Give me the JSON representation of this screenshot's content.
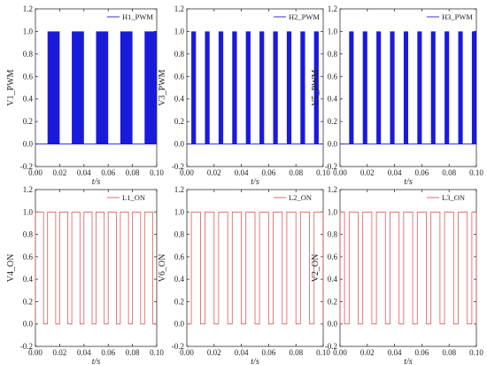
{
  "chart_data": [
    {
      "type": "line",
      "series": [
        {
          "name": "H1_PWM",
          "kind": "pwm"
        }
      ],
      "xlabel": "t/s",
      "ylabel": "V1_PWM",
      "xlim": [
        0,
        0.1
      ],
      "ylim": [
        -0.2,
        1.2
      ],
      "xticks": [
        "0.00",
        "0.02",
        "0.04",
        "0.06",
        "0.08",
        "0.10"
      ],
      "yticks": [
        "-0.2",
        "0.0",
        "0.2",
        "0.4",
        "0.6",
        "0.8",
        "1.0",
        "1.2"
      ],
      "legend_position": "top-right",
      "color": "#1a1adb",
      "pulse_periods": [
        [
          0.01,
          0.02
        ],
        [
          0.03,
          0.04
        ],
        [
          0.05,
          0.06
        ],
        [
          0.07,
          0.08
        ],
        [
          0.09,
          0.1
        ]
      ],
      "pulse_high": 1.0,
      "pulse_low": 0.0
    },
    {
      "type": "line",
      "series": [
        {
          "name": "H2_PWM",
          "kind": "pwm"
        }
      ],
      "xlabel": "t/s",
      "ylabel": "V3_PWM",
      "xlim": [
        0,
        0.1
      ],
      "ylim": [
        -0.2,
        1.2
      ],
      "xticks": [
        "0.00",
        "0.02",
        "0.04",
        "0.06",
        "0.08",
        "0.10"
      ],
      "yticks": [
        "-0.2",
        "0.0",
        "0.2",
        "0.4",
        "0.6",
        "0.8",
        "1.0",
        "1.2"
      ],
      "legend_position": "top-right",
      "color": "#1a1adb",
      "pulse_periods": [
        [
          0.0033,
          0.0067
        ],
        [
          0.0133,
          0.0167
        ],
        [
          0.0233,
          0.0267
        ],
        [
          0.0333,
          0.0367
        ],
        [
          0.0433,
          0.0467
        ],
        [
          0.0533,
          0.0567
        ],
        [
          0.0633,
          0.0667
        ],
        [
          0.0733,
          0.0767
        ],
        [
          0.0833,
          0.0867
        ],
        [
          0.0933,
          0.0967
        ]
      ],
      "pulse_high": 1.0,
      "pulse_low": 0.0
    },
    {
      "type": "line",
      "series": [
        {
          "name": "H3_PWM",
          "kind": "pwm"
        }
      ],
      "xlabel": "t/s",
      "ylabel": "V5_PWM",
      "xlim": [
        0,
        0.1
      ],
      "ylim": [
        -0.2,
        1.2
      ],
      "xticks": [
        "0.00",
        "0.02",
        "0.04",
        "0.06",
        "0.08",
        "0.10"
      ],
      "yticks": [
        "-0.2",
        "0.0",
        "0.2",
        "0.4",
        "0.6",
        "0.8",
        "1.0",
        "1.2"
      ],
      "legend_position": "top-right",
      "color": "#1a1adb",
      "pulse_periods": [
        [
          0.0067,
          0.01
        ],
        [
          0.0167,
          0.02
        ],
        [
          0.0267,
          0.03
        ],
        [
          0.0367,
          0.04
        ],
        [
          0.0467,
          0.05
        ],
        [
          0.0567,
          0.06
        ],
        [
          0.0667,
          0.07
        ],
        [
          0.0767,
          0.08
        ],
        [
          0.0867,
          0.09
        ],
        [
          0.0967,
          0.1
        ]
      ],
      "pulse_high": 1.0,
      "pulse_low": 0.0
    },
    {
      "type": "line",
      "series": [
        {
          "name": "L1_ON",
          "kind": "square"
        }
      ],
      "xlabel": "t/s",
      "ylabel": "V4_ON",
      "xlim": [
        0,
        0.1
      ],
      "ylim": [
        -0.2,
        1.2
      ],
      "xticks": [
        "0.00",
        "0.02",
        "0.04",
        "0.06",
        "0.08",
        "0.10"
      ],
      "yticks": [
        "-0.2",
        "0.0",
        "0.2",
        "0.4",
        "0.6",
        "0.8",
        "1.0",
        "1.2"
      ],
      "legend_position": "top-right",
      "color": "#e05a5a",
      "high_intervals": [
        [
          0.0,
          0.0067
        ],
        [
          0.01,
          0.0167
        ],
        [
          0.02,
          0.0267
        ],
        [
          0.03,
          0.0367
        ],
        [
          0.04,
          0.0467
        ],
        [
          0.05,
          0.0567
        ],
        [
          0.06,
          0.0667
        ],
        [
          0.07,
          0.0767
        ],
        [
          0.08,
          0.0867
        ],
        [
          0.09,
          0.0967
        ]
      ],
      "pulse_high": 1.0,
      "pulse_low": 0.0
    },
    {
      "type": "line",
      "series": [
        {
          "name": "L2_ON",
          "kind": "square"
        }
      ],
      "xlabel": "t/s",
      "ylabel": "V6_ON",
      "xlim": [
        0,
        0.1
      ],
      "ylim": [
        -0.2,
        1.2
      ],
      "xticks": [
        "0.00",
        "0.02",
        "0.04",
        "0.06",
        "0.08",
        "0.10"
      ],
      "yticks": [
        "-0.2",
        "0.0",
        "0.2",
        "0.4",
        "0.6",
        "0.8",
        "1.0",
        "1.2"
      ],
      "legend_position": "top-right",
      "color": "#e05a5a",
      "high_intervals": [
        [
          0.0033,
          0.01
        ],
        [
          0.0133,
          0.02
        ],
        [
          0.0233,
          0.03
        ],
        [
          0.0333,
          0.04
        ],
        [
          0.0433,
          0.05
        ],
        [
          0.0533,
          0.06
        ],
        [
          0.0633,
          0.07
        ],
        [
          0.0733,
          0.08
        ],
        [
          0.0833,
          0.09
        ],
        [
          0.0933,
          0.1
        ]
      ],
      "pulse_high": 1.0,
      "pulse_low": 0.0
    },
    {
      "type": "line",
      "series": [
        {
          "name": "L3_ON",
          "kind": "square"
        }
      ],
      "xlabel": "t/s",
      "ylabel": "V2_ON",
      "xlim": [
        0,
        0.1
      ],
      "ylim": [
        -0.2,
        1.2
      ],
      "xticks": [
        "0.00",
        "0.02",
        "0.04",
        "0.06",
        "0.08",
        "0.10"
      ],
      "yticks": [
        "-0.2",
        "0.0",
        "0.2",
        "0.4",
        "0.6",
        "0.8",
        "1.0",
        "1.2"
      ],
      "legend_position": "top-right",
      "color": "#e05a5a",
      "high_intervals": [
        [
          0.0,
          0.0033
        ],
        [
          0.0067,
          0.0133
        ],
        [
          0.0167,
          0.0233
        ],
        [
          0.0267,
          0.0333
        ],
        [
          0.0367,
          0.0433
        ],
        [
          0.0467,
          0.0533
        ],
        [
          0.0567,
          0.0633
        ],
        [
          0.0667,
          0.0733
        ],
        [
          0.0767,
          0.0833
        ],
        [
          0.0867,
          0.0933
        ],
        [
          0.0967,
          0.1
        ]
      ],
      "pulse_high": 1.0,
      "pulse_low": 0.0
    }
  ]
}
